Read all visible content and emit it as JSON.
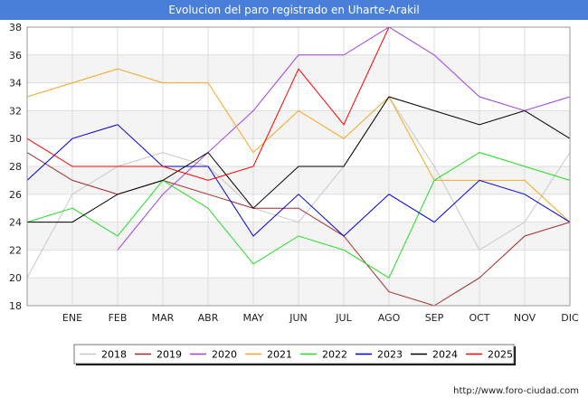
{
  "chart_data": {
    "type": "line",
    "title": "Evolucion del paro registrado en Uharte-Arakil",
    "categories": [
      "",
      "ENE",
      "FEB",
      "MAR",
      "ABR",
      "MAY",
      "JUN",
      "JUL",
      "AGO",
      "SEP",
      "OCT",
      "NOV",
      "DIC"
    ],
    "ylim": [
      18,
      38
    ],
    "yticks": [
      18,
      20,
      22,
      24,
      26,
      28,
      30,
      32,
      34,
      36,
      38
    ],
    "grid": true,
    "legend_position": "bottom",
    "series": [
      {
        "name": "2018",
        "color": "#c8c8c8",
        "values": [
          20,
          26,
          28,
          29,
          28,
          25,
          24,
          28,
          33,
          28,
          22,
          24,
          29
        ]
      },
      {
        "name": "2019",
        "color": "#a52a2a",
        "values": [
          29,
          27,
          26,
          27,
          26,
          25,
          25,
          23,
          19,
          18,
          20,
          23,
          24
        ]
      },
      {
        "name": "2020",
        "color": "#a040e0",
        "values": [
          null,
          null,
          22,
          26,
          29,
          32,
          36,
          36,
          38,
          36,
          33,
          32,
          33
        ]
      },
      {
        "name": "2021",
        "color": "#f5a623",
        "values": [
          33,
          34,
          35,
          34,
          34,
          29,
          32,
          30,
          33,
          27,
          27,
          27,
          24
        ]
      },
      {
        "name": "2022",
        "color": "#22dd22",
        "values": [
          24,
          25,
          23,
          27,
          25,
          21,
          23,
          22,
          20,
          27,
          29,
          28,
          27
        ]
      },
      {
        "name": "2023",
        "color": "#0000dd",
        "values": [
          27,
          30,
          31,
          28,
          28,
          23,
          26,
          23,
          26,
          24,
          27,
          26,
          24
        ]
      },
      {
        "name": "2024",
        "color": "#000000",
        "values": [
          24,
          24,
          26,
          27,
          29,
          25,
          28,
          28,
          33,
          32,
          31,
          32,
          30
        ]
      },
      {
        "name": "2025",
        "color": "#ff0000",
        "values": [
          30,
          28,
          28,
          28,
          27,
          28,
          35,
          31,
          38,
          null,
          null,
          null,
          null
        ]
      }
    ]
  },
  "source": "http://www.foro-ciudad.com"
}
